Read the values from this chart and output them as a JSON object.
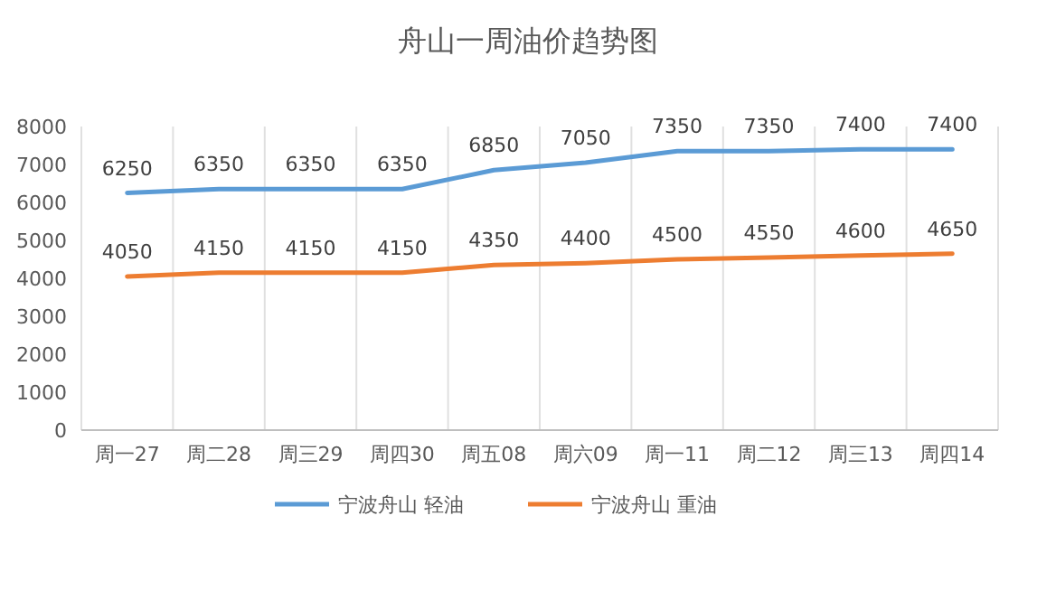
{
  "chart_data": {
    "type": "line",
    "title": "舟山一周油价趋势图",
    "categories": [
      "周一27",
      "周二28",
      "周三29",
      "周四30",
      "周五08",
      "周六09",
      "周一11",
      "周二12",
      "周三13",
      "周四14"
    ],
    "series": [
      {
        "name": "宁波舟山 轻油",
        "color": "#5b9bd5",
        "values": [
          6250,
          6350,
          6350,
          6350,
          6850,
          7050,
          7350,
          7350,
          7400,
          7400
        ]
      },
      {
        "name": "宁波舟山 重油",
        "color": "#ed7d31",
        "values": [
          4050,
          4150,
          4150,
          4150,
          4350,
          4400,
          4500,
          4550,
          4600,
          4650
        ]
      }
    ],
    "ylim": [
      0,
      8000
    ],
    "yticks": [
      0,
      1000,
      2000,
      3000,
      4000,
      5000,
      6000,
      7000,
      8000
    ],
    "grid": "x",
    "legend": "bottom",
    "data_labels": true,
    "marker": "none",
    "line_style": "solid"
  }
}
